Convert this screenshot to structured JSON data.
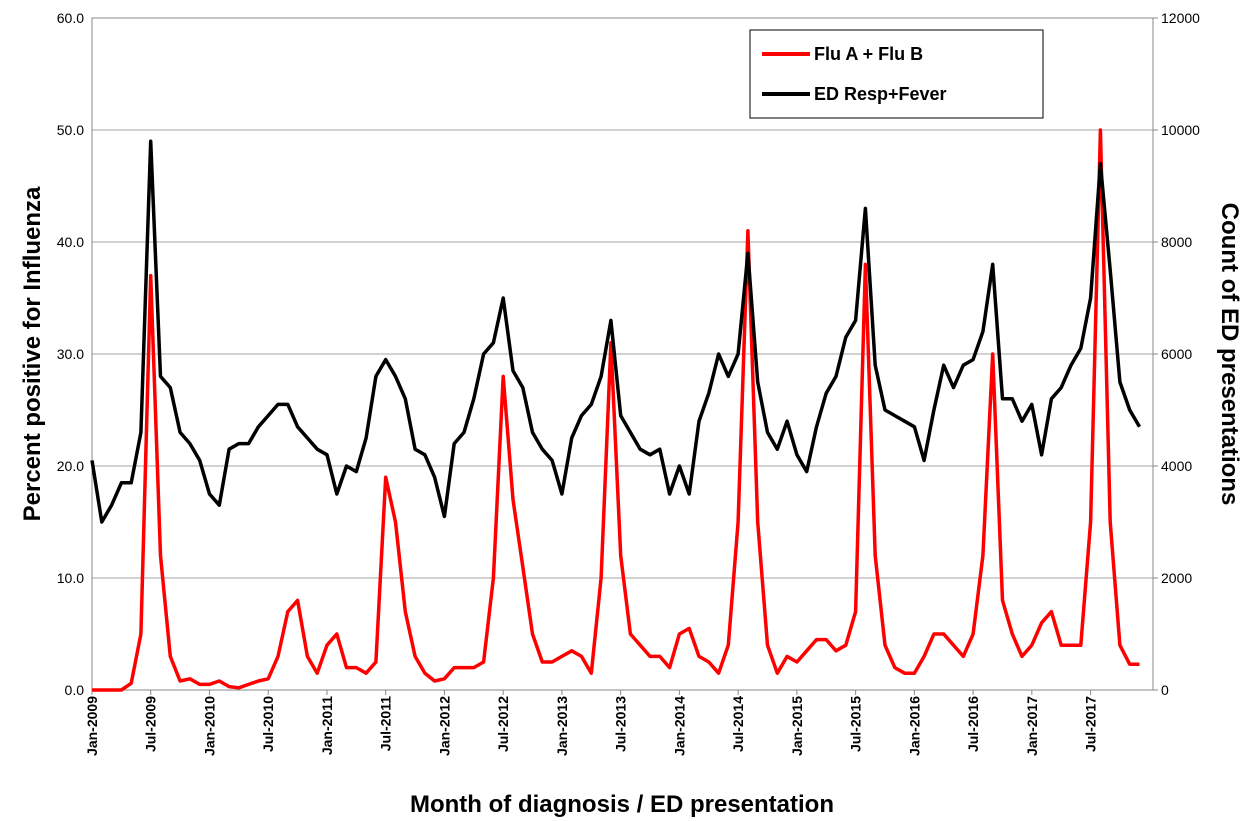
{
  "chart_data": {
    "type": "line",
    "x_label": "Month of diagnosis  / ED presentation",
    "y_label": "Percent  positive for Influenza",
    "y2_label": "Count of ED presentations",
    "categories": [
      "Jan-2009",
      null,
      null,
      null,
      null,
      null,
      "Jul-2009",
      null,
      null,
      null,
      null,
      null,
      "Jan-2010",
      null,
      null,
      null,
      null,
      null,
      "Jul-2010",
      null,
      null,
      null,
      null,
      null,
      "Jan-2011",
      null,
      null,
      null,
      null,
      null,
      "Jul-2011",
      null,
      null,
      null,
      null,
      null,
      "Jan-2012",
      null,
      null,
      null,
      null,
      null,
      "Jul-2012",
      null,
      null,
      null,
      null,
      null,
      "Jan-2013",
      null,
      null,
      null,
      null,
      null,
      "Jul-2013",
      null,
      null,
      null,
      null,
      null,
      "Jan-2014",
      null,
      null,
      null,
      null,
      null,
      "Jul-2014",
      null,
      null,
      null,
      null,
      null,
      "Jan-2015",
      null,
      null,
      null,
      null,
      null,
      "Jul-2015",
      null,
      null,
      null,
      null,
      null,
      "Jan-2016",
      null,
      null,
      null,
      null,
      null,
      "Jul-2016",
      null,
      null,
      null,
      null,
      null,
      "Jan-2017",
      null,
      null,
      null,
      null,
      null,
      "Jul-2017",
      null,
      null,
      null,
      null,
      null
    ],
    "series": [
      {
        "name": "Flu A + Flu B",
        "color": "#ff0000",
        "axis": "y",
        "values": [
          0,
          0,
          0,
          0,
          0.6,
          5,
          37,
          12,
          3,
          0.8,
          1,
          0.5,
          0.5,
          0.8,
          0.3,
          0.2,
          0.5,
          0.8,
          1,
          3,
          7,
          8,
          3,
          1.5,
          4,
          5,
          2,
          2,
          1.5,
          2.5,
          19,
          15,
          7,
          3,
          1.5,
          0.8,
          1,
          2,
          2,
          2,
          2.5,
          10,
          28,
          17,
          11,
          5,
          2.5,
          2.5,
          3,
          3.5,
          3,
          1.5,
          10,
          31,
          12,
          5,
          4,
          3,
          3,
          2,
          5,
          5.5,
          3,
          2.5,
          1.5,
          4,
          15,
          41,
          15,
          4,
          1.5,
          3,
          2.5,
          3.5,
          4.5,
          4.5,
          3.5,
          4,
          7,
          38,
          12,
          4,
          2,
          1.5,
          1.5,
          3,
          5,
          5,
          4,
          3,
          5,
          12,
          30,
          8,
          5,
          3,
          4,
          6,
          7,
          4,
          4,
          4,
          15,
          50,
          15,
          4,
          2.3,
          2.3
        ]
      },
      {
        "name": "ED Resp+Fever",
        "color": "#000000",
        "axis": "y2",
        "values": [
          4100,
          3000,
          3300,
          3700,
          3700,
          4600,
          9800,
          5600,
          5400,
          4600,
          4400,
          4100,
          3500,
          3300,
          4300,
          4400,
          4400,
          4700,
          4900,
          5100,
          5100,
          4700,
          4500,
          4300,
          4200,
          3500,
          4000,
          3900,
          4500,
          5600,
          5900,
          5600,
          5200,
          4300,
          4200,
          3800,
          3100,
          4400,
          4600,
          5200,
          6000,
          6200,
          7000,
          5700,
          5400,
          4600,
          4300,
          4100,
          3500,
          4500,
          4900,
          5100,
          5600,
          6600,
          4900,
          4600,
          4300,
          4200,
          4300,
          3500,
          4000,
          3500,
          4800,
          5300,
          6000,
          5600,
          6000,
          7800,
          5500,
          4600,
          4300,
          4800,
          4200,
          3900,
          4700,
          5300,
          5600,
          6300,
          6600,
          8600,
          5800,
          5000,
          4900,
          4800,
          4700,
          4100,
          5000,
          5800,
          5400,
          5800,
          5900,
          6400,
          7600,
          5200,
          5200,
          4800,
          5100,
          4200,
          5200,
          5400,
          5800,
          6100,
          7000,
          9400,
          7500,
          5500,
          5000,
          4700
        ]
      }
    ],
    "ylim": [
      0,
      60
    ],
    "yticks": [
      {
        "value": 0,
        "label": "0.0"
      },
      {
        "value": 10,
        "label": "10.0"
      },
      {
        "value": 20,
        "label": "20.0"
      },
      {
        "value": 30,
        "label": "30.0"
      },
      {
        "value": 40,
        "label": "40.0"
      },
      {
        "value": 50,
        "label": "50.0"
      },
      {
        "value": 60,
        "label": "60.0"
      }
    ],
    "y2lim": [
      0,
      12000
    ],
    "y2ticks": [
      0,
      2000,
      4000,
      6000,
      8000,
      10000,
      12000
    ],
    "grid": true,
    "legend": "top-right"
  }
}
